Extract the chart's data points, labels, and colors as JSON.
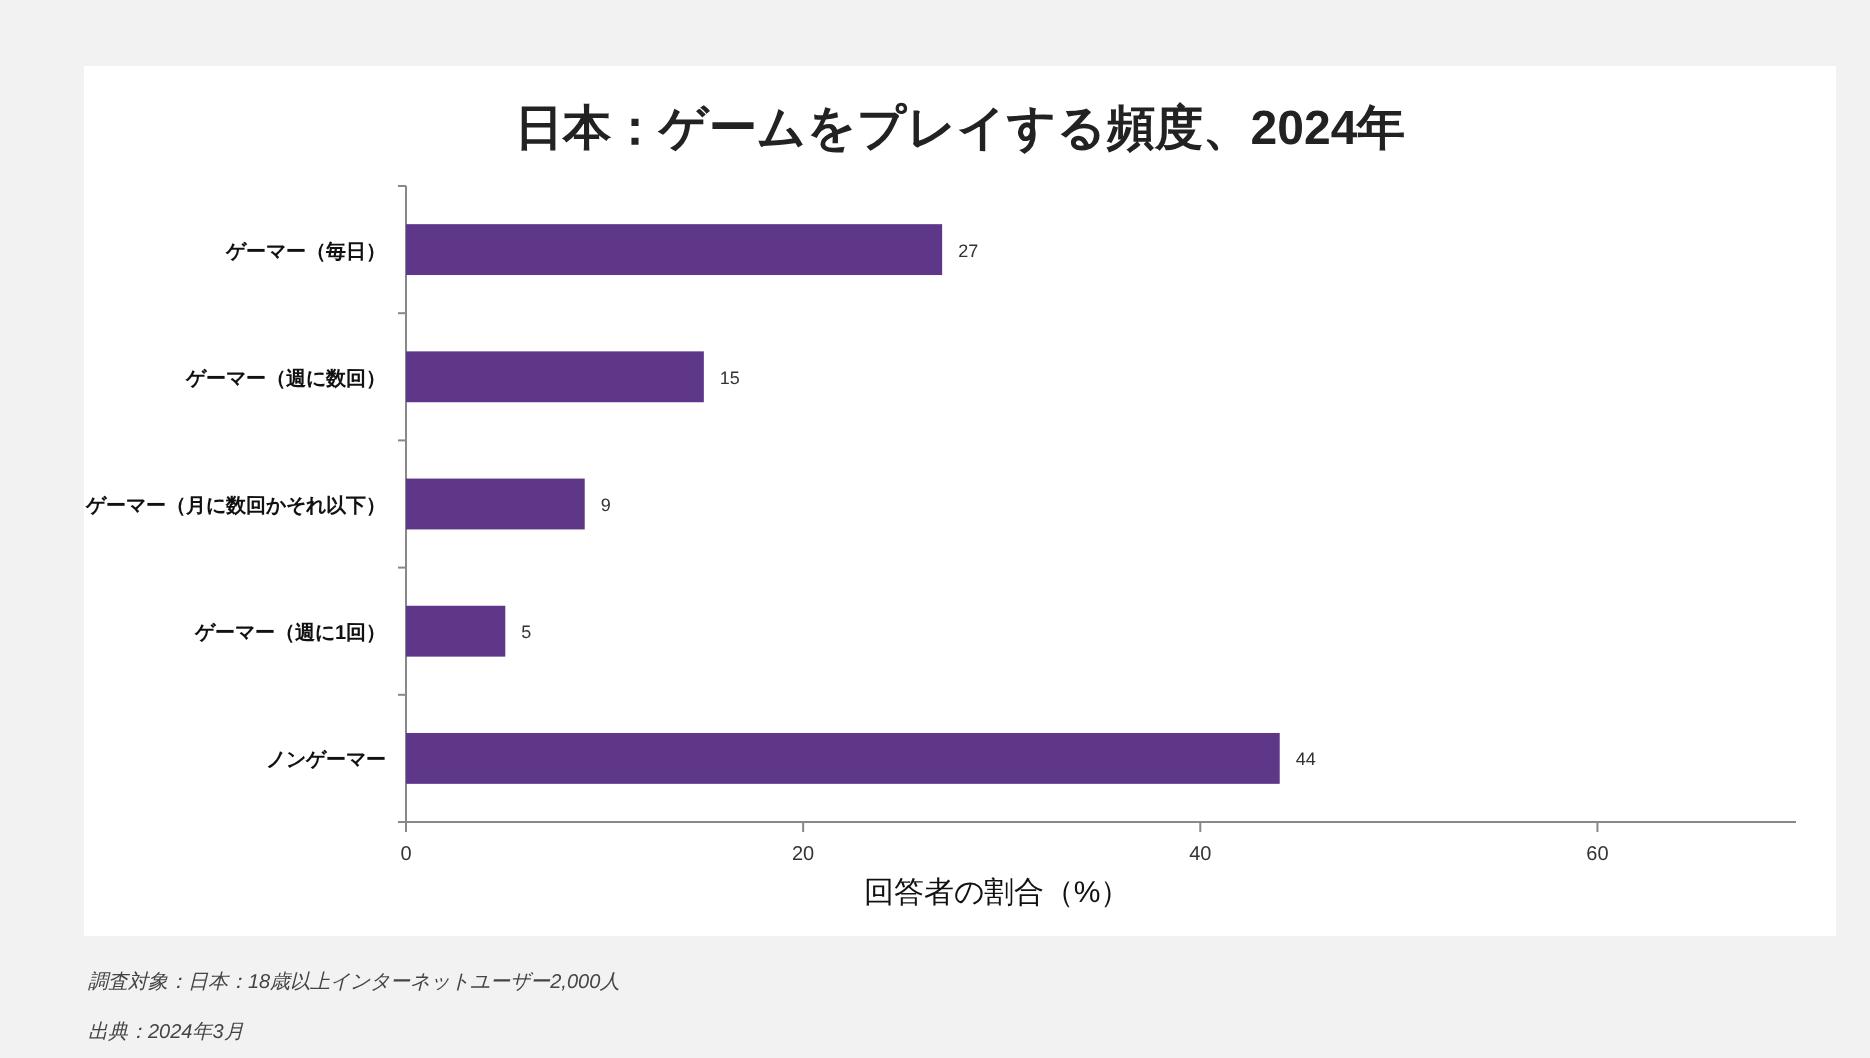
{
  "chart_data": {
    "type": "bar",
    "orientation": "horizontal",
    "title": "日本：ゲームをプレイする頻度、2024年",
    "xlabel": "回答者の割合（%）",
    "categories": [
      "ゲーマー（毎日）",
      "ゲーマー（週に数回）",
      "ゲーマー（月に数回かそれ以下）",
      "ゲーマー（週に1回）",
      "ノンゲーマー"
    ],
    "values": [
      27,
      15,
      9,
      5,
      44
    ],
    "color": "#5f3789",
    "data_labels": true,
    "xlim": [
      0,
      70
    ],
    "xticks": [
      0,
      20,
      40,
      60
    ],
    "annotations": [
      "調査対象：日本：18歳以上インターネットユーザー2,000人",
      "出典：2024年3月"
    ]
  }
}
